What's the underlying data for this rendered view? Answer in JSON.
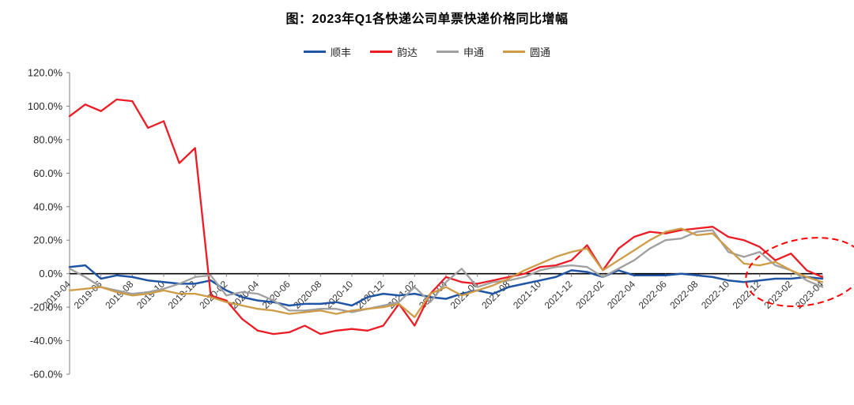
{
  "title": "图：2023年Q1各快递公司单票快递价格同比增幅",
  "chart_data": {
    "type": "line",
    "title": "图：2023年Q1各快递公司单票快递价格同比增幅",
    "xlabel": "",
    "ylabel": "",
    "ylim": [
      -60,
      120
    ],
    "y_ticks": [
      120,
      100,
      80,
      60,
      40,
      20,
      0,
      -20,
      -40,
      -60
    ],
    "y_tick_labels": [
      "120.0%",
      "100.0%",
      "80.0%",
      "60.0%",
      "40.0%",
      "20.0%",
      "0.0%",
      "-20.0%",
      "-40.0%",
      "-60.0%"
    ],
    "x": [
      "2019-04",
      "2019-05",
      "2019-06",
      "2019-07",
      "2019-08",
      "2019-09",
      "2019-10",
      "2019-11",
      "2019-12",
      "2020-01",
      "2020-02",
      "2020-03",
      "2020-04",
      "2020-05",
      "2020-06",
      "2020-07",
      "2020-08",
      "2020-09",
      "2020-10",
      "2020-11",
      "2020-12",
      "2021-01",
      "2021-02",
      "2021-03",
      "2021-04",
      "2021-05",
      "2021-06",
      "2021-07",
      "2021-08",
      "2021-09",
      "2021-10",
      "2021-11",
      "2021-12",
      "2022-01",
      "2022-02",
      "2022-03",
      "2022-04",
      "2022-05",
      "2022-06",
      "2022-07",
      "2022-08",
      "2022-09",
      "2022-10",
      "2022-11",
      "2022-12",
      "2023-01",
      "2023-02",
      "2023-03",
      "2023-04"
    ],
    "x_tick_labels": [
      "2019-04",
      "2019-06",
      "2019-08",
      "2019-10",
      "2019-12",
      "2020-02",
      "2020-04",
      "2020-06",
      "2020-08",
      "2020-10",
      "2020-12",
      "2021-02",
      "2021-04",
      "2021-06",
      "2021-08",
      "2021-10",
      "2021-12",
      "2022-02",
      "2022-04",
      "2022-06",
      "2022-08",
      "2022-10",
      "2022-12",
      "2023-02",
      "2023-04"
    ],
    "unit": "percent",
    "legend_position": "top",
    "grid": false,
    "series": [
      {
        "name": "顺丰",
        "color": "#1F55A4",
        "values": [
          4,
          5,
          -3,
          -1,
          -2,
          -4,
          -5,
          -6,
          -6,
          -4,
          -10,
          -14,
          -16,
          -17,
          -19,
          -18,
          -18,
          -17,
          -19,
          -14,
          -12,
          -13,
          -12,
          -14,
          -15,
          -12,
          -10,
          -12,
          -8,
          -6,
          -4,
          -2,
          2,
          1,
          -2,
          2,
          -1,
          -1,
          -1,
          0,
          -1,
          -2,
          -4,
          -5,
          -4,
          -3,
          -3,
          -2,
          -3
        ]
      },
      {
        "name": "韵达",
        "color": "#ED1C24",
        "values": [
          94,
          101,
          97,
          104,
          103,
          87,
          91,
          66,
          75,
          -13,
          -16,
          -27,
          -34,
          -36,
          -35,
          -31,
          -36,
          -34,
          -33,
          -34,
          -31,
          -18,
          -31,
          -12,
          -2,
          -5,
          -6,
          -4,
          -2,
          0,
          4,
          5,
          8,
          17,
          2,
          15,
          22,
          25,
          24,
          26,
          27,
          28,
          22,
          20,
          16,
          8,
          12,
          2,
          -2
        ]
      },
      {
        "name": "申通",
        "color": "#A0A0A0",
        "values": [
          3,
          -2,
          -8,
          -10,
          -12,
          -11,
          -9,
          -6,
          -2,
          -1,
          -13,
          -11,
          -12,
          -16,
          -22,
          -22,
          -21,
          -21,
          -23,
          -21,
          -19,
          -17,
          -8,
          -17,
          -5,
          3,
          -8,
          -5,
          -4,
          -2,
          2,
          4,
          5,
          4,
          -2,
          3,
          8,
          15,
          20,
          21,
          25,
          26,
          13,
          10,
          13,
          5,
          2,
          -4,
          -8
        ]
      },
      {
        "name": "圆通",
        "color": "#CE9B46",
        "values": [
          -10,
          -9,
          -8,
          -11,
          -13,
          -12,
          -10,
          -12,
          -12,
          -14,
          -17,
          -19,
          -21,
          -22,
          -24,
          -23,
          -22,
          -24,
          -22,
          -21,
          -20,
          -18,
          -26,
          -12,
          -8,
          -13,
          -10,
          -7,
          -3,
          2,
          6,
          10,
          13,
          15,
          2,
          8,
          14,
          20,
          25,
          27,
          23,
          24,
          15,
          6,
          5,
          7,
          2,
          -2,
          -5
        ]
      }
    ],
    "annotation_ellipse": {
      "style": "dashed",
      "color": "#FF0000",
      "x_start_month": "2022-11",
      "x_end_month": "2023-04"
    }
  }
}
